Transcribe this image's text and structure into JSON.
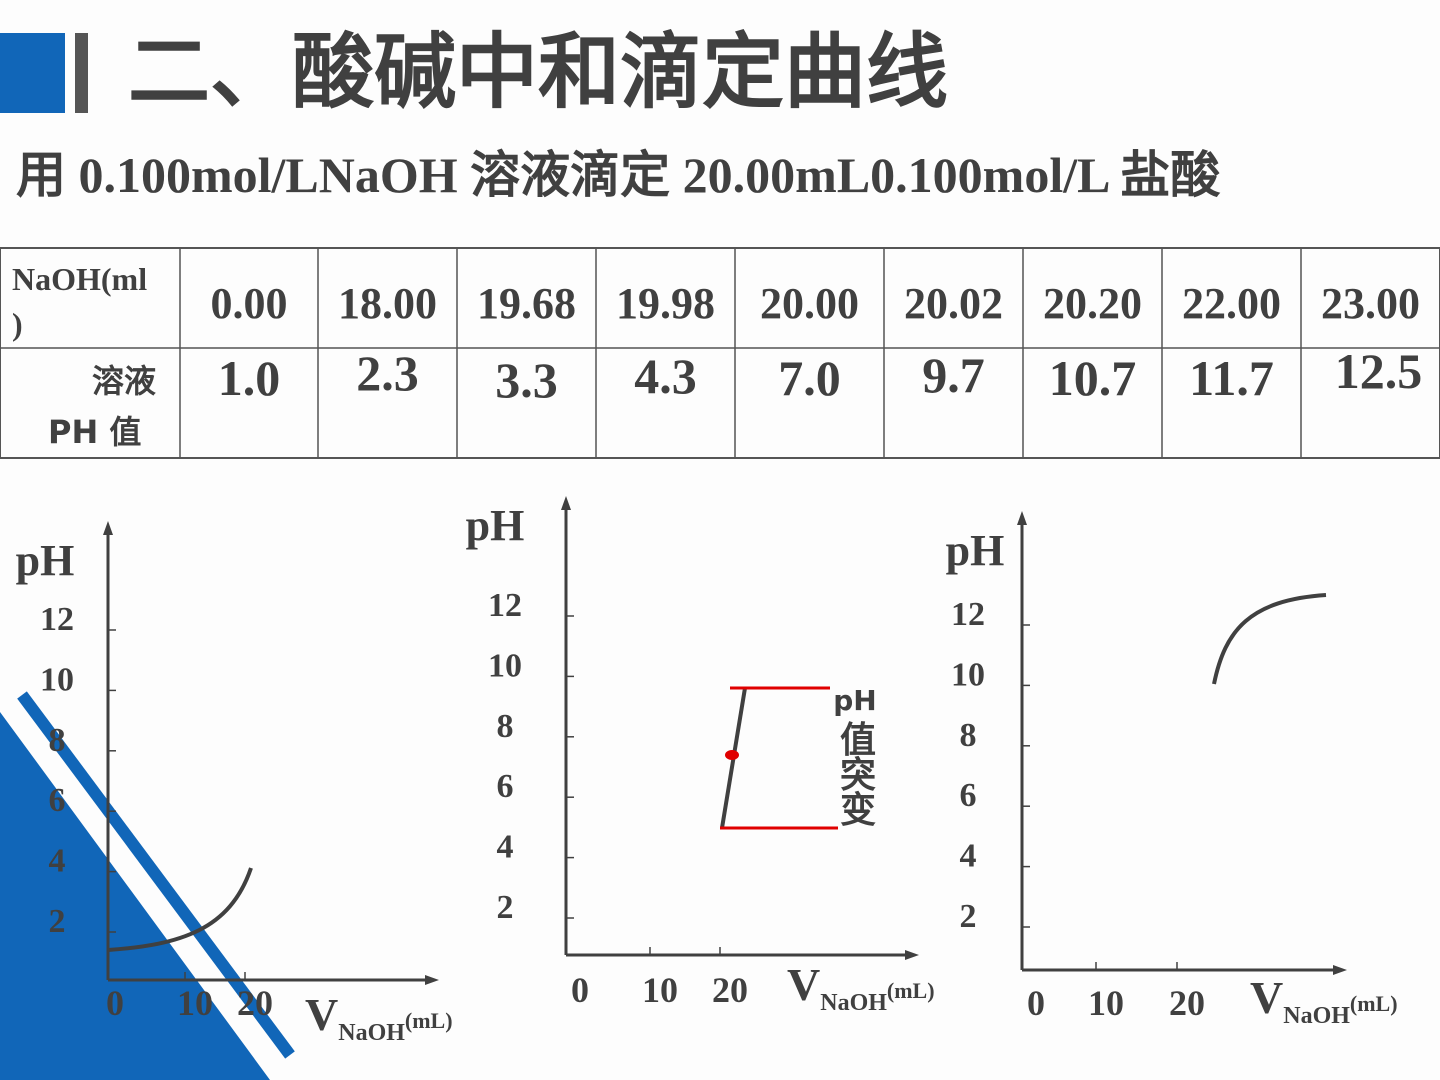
{
  "header": {
    "title": "二、酸碱中和滴定曲线",
    "subtitle": "用 0.100mol/LNaOH 溶液滴定 20.00mL0.100mol/L 盐酸"
  },
  "table": {
    "rows": [
      {
        "label": [
          "NaOH(ml",
          ")"
        ],
        "cells": [
          {
            "text": "0.00",
            "color": "#404040"
          },
          {
            "text": "18.00",
            "color": "#404040"
          },
          {
            "text": "19.68",
            "color": "#404040"
          },
          {
            "text": "19.98",
            "color": "#e00000"
          },
          {
            "text": "20.00",
            "color": "#404040"
          },
          {
            "text": "20.02",
            "color": "#e00000"
          },
          {
            "text": "20.20",
            "color": "#404040"
          },
          {
            "text": "22.00",
            "color": "#404040"
          },
          {
            "text": "23.00",
            "color": "#404040"
          }
        ]
      },
      {
        "label": [
          "溶液",
          "PH 值"
        ],
        "cells": [
          {
            "text": "1.0",
            "color": "#e00000"
          },
          {
            "text": "2.3",
            "color": "#404040"
          },
          {
            "text": "3.3",
            "color": "#404040"
          },
          {
            "text": "4.3",
            "color": "#e00000"
          },
          {
            "text": "7.0",
            "color": "#e00000"
          },
          {
            "text": "9.7",
            "color": "#e00000"
          },
          {
            "text": "10.7",
            "color": "#404040"
          },
          {
            "text": "11.7",
            "color": "#404040"
          },
          {
            "text": "12.5",
            "color": "#404040"
          }
        ]
      }
    ]
  },
  "panels": [
    {
      "y_label": "pH",
      "yticks": [
        12,
        10,
        8,
        6,
        4,
        2
      ],
      "xticks": [
        0,
        10,
        20
      ],
      "x_label": {
        "main": "V",
        "sub": "NaOH",
        "sup": "(mL)"
      }
    },
    {
      "y_label": "pH",
      "yticks": [
        12,
        10,
        8,
        6,
        4,
        2
      ],
      "xticks": [
        0,
        10,
        20
      ],
      "x_label": {
        "main": "V",
        "sub": "NaOH",
        "sup": "(mL)"
      },
      "annotation": {
        "top": "pH",
        "lines": [
          "值",
          "突",
          "变"
        ]
      }
    },
    {
      "y_label": "pH",
      "yticks": [
        12,
        10,
        8,
        6,
        4,
        2
      ],
      "xticks": [
        0,
        10,
        20
      ],
      "x_label": {
        "main": "V",
        "sub": "NaOH",
        "sup": "(mL)"
      }
    }
  ]
}
